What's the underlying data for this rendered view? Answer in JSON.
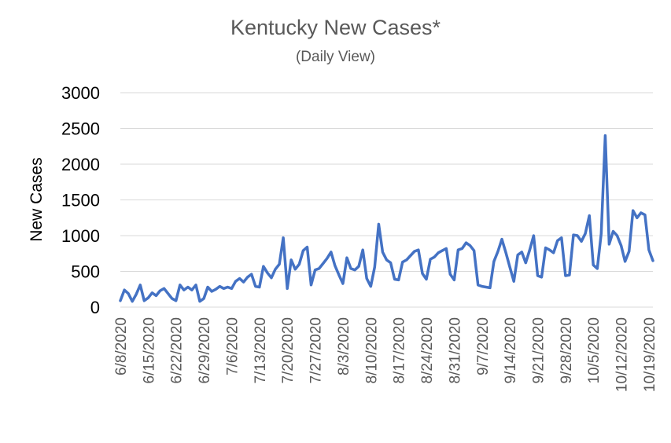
{
  "chart_data": {
    "type": "line",
    "title": "Kentucky New Cases*",
    "subtitle": "(Daily View)",
    "xlabel": "",
    "ylabel": "New Cases",
    "ylim": [
      0,
      3000
    ],
    "yticks": [
      0,
      500,
      1000,
      1500,
      2000,
      2500,
      3000
    ],
    "grid": "horizontal",
    "legend": "none",
    "line_color": "#4472C4",
    "x_tick_labels": [
      "6/8/2020",
      "6/15/2020",
      "6/22/2020",
      "6/29/2020",
      "7/6/2020",
      "7/13/2020",
      "7/20/2020",
      "7/27/2020",
      "8/3/2020",
      "8/10/2020",
      "8/17/2020",
      "8/24/2020",
      "8/31/2020",
      "9/7/2020",
      "9/14/2020",
      "9/21/2020",
      "9/28/2020",
      "10/5/2020",
      "10/12/2020",
      "10/19/2020"
    ],
    "x_start": "6/8/2020",
    "x_end": "10/20/2020",
    "series": [
      {
        "values": [
          90,
          240,
          190,
          80,
          180,
          310,
          90,
          130,
          200,
          160,
          230,
          260,
          190,
          120,
          90,
          310,
          240,
          280,
          240,
          310,
          80,
          120,
          280,
          220,
          250,
          290,
          260,
          280,
          260,
          360,
          400,
          350,
          420,
          460,
          290,
          280,
          570,
          480,
          410,
          530,
          600,
          970,
          260,
          660,
          530,
          600,
          790,
          840,
          310,
          520,
          540,
          610,
          680,
          770,
          580,
          450,
          330,
          690,
          540,
          520,
          570,
          800,
          400,
          290,
          560,
          1160,
          770,
          660,
          620,
          390,
          380,
          630,
          660,
          720,
          780,
          800,
          470,
          390,
          670,
          700,
          760,
          790,
          820,
          460,
          380,
          800,
          820,
          900,
          860,
          790,
          310,
          290,
          280,
          270,
          640,
          780,
          950,
          760,
          560,
          360,
          730,
          770,
          620,
          800,
          1000,
          440,
          420,
          830,
          800,
          760,
          930,
          970,
          440,
          450,
          1010,
          1000,
          920,
          1030,
          1280,
          590,
          540,
          1030,
          2400,
          880,
          1060,
          1000,
          860,
          640,
          780,
          1350,
          1250,
          1320,
          1290,
          800,
          650
        ]
      }
    ]
  }
}
